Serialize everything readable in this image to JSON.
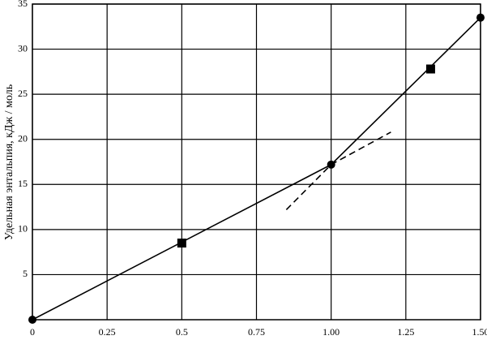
{
  "chart_data": {
    "type": "line",
    "y_label": "Удельная энтальпия, кДж / моль",
    "xlim": [
      0,
      1.5
    ],
    "ylim": [
      0,
      35
    ],
    "xticks": [
      0,
      0.25,
      0.5,
      0.75,
      {
        "value": 1,
        "label": "1.00"
      },
      1.25,
      {
        "value": 1.5,
        "label": "1.50"
      }
    ],
    "yticks": [
      5,
      10,
      15,
      20,
      25,
      30,
      35
    ],
    "grid": true,
    "series": [
      {
        "color": "#000000",
        "style": "solid",
        "marker": "circle",
        "x": [
          0,
          1,
          1.5
        ],
        "values": [
          0,
          17.2,
          33.5
        ]
      },
      {
        "color": "#000000",
        "style": "none",
        "marker": "square",
        "x": [
          0.5,
          1.333
        ],
        "values": [
          8.5,
          27.8
        ]
      },
      {
        "color": "#000000",
        "style": "dashed",
        "marker": "none",
        "x": [
          0.85,
          1,
          1.2
        ],
        "values": [
          12.2,
          17.2,
          20.8
        ]
      }
    ]
  }
}
